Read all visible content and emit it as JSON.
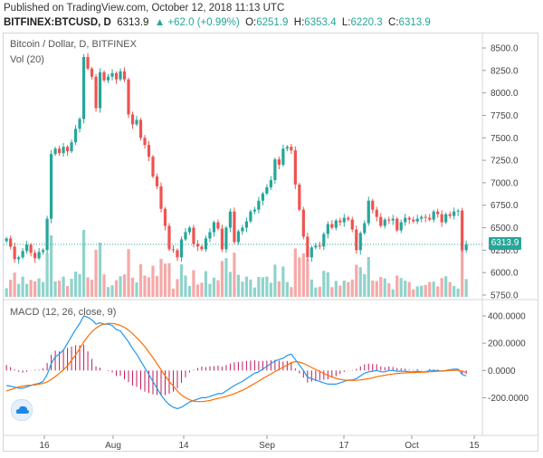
{
  "header": {
    "published": "Published on TradingView.com, October 12, 2018 11:13 UTC",
    "symbol": "BITFINEX:BTCUSD, D",
    "last": "6313.9",
    "change": "+62.0 (+0.99%)",
    "o_label": "O:",
    "o_val": "6251.9",
    "h_label": "H:",
    "h_val": "6353.4",
    "l_label": "L:",
    "l_val": "6220.3",
    "c_label": "C:",
    "c_val": "6313.9"
  },
  "legend": {
    "title": "Bitcoin / Dollar, D, BITFINEX",
    "vol": "Vol (20)",
    "macd": "MACD (12, 26, close, 9)"
  },
  "price_tag": "6313.9",
  "colors": {
    "up": "#26a69a",
    "down": "#ef5350",
    "vol_up": "#8fd3cb",
    "vol_down": "#f4a9a8",
    "macd": "#2196f3",
    "signal": "#ff6d00",
    "hist": "#c2185b"
  },
  "icons": {
    "logo": "tradingview-cloud-icon"
  },
  "chart_data": [
    {
      "type": "candlestick",
      "title": "Bitcoin / Dollar, D, BITFINEX",
      "ylim": [
        5750,
        8500
      ],
      "y_ticks": [
        "8500.0",
        "8250.0",
        "8000.0",
        "7750.0",
        "7500.0",
        "7250.0",
        "7000.0",
        "6750.0",
        "6500.0",
        "6250.0",
        "6000.0",
        "5750.0"
      ],
      "x_ticks": [
        "16",
        "Aug",
        "14",
        "Sep",
        "17",
        "Oct",
        "15"
      ],
      "current_price": 6313.9,
      "close": [
        6380,
        6290,
        6150,
        6170,
        6240,
        6310,
        6220,
        6160,
        6230,
        6250,
        6600,
        7320,
        7380,
        7330,
        7400,
        7350,
        7450,
        7600,
        7710,
        8400,
        8270,
        8180,
        7830,
        8230,
        8140,
        8180,
        8220,
        8150,
        8240,
        8150,
        7760,
        7650,
        7700,
        7500,
        7420,
        7290,
        7070,
        6960,
        6710,
        6520,
        6260,
        6250,
        6170,
        6370,
        6450,
        6500,
        6320,
        6290,
        6260,
        6380,
        6450,
        6560,
        6490,
        6260,
        6500,
        6680,
        6340,
        6460,
        6500,
        6570,
        6680,
        6700,
        6800,
        6880,
        6950,
        7030,
        7260,
        7200,
        7380,
        7400,
        7360,
        6980,
        6700,
        6400,
        6170,
        6280,
        6300,
        6290,
        6430,
        6540,
        6500,
        6580,
        6560,
        6610,
        6590,
        6480,
        6250,
        6440,
        6550,
        6800,
        6700,
        6620,
        6520,
        6590,
        6580,
        6600,
        6470,
        6560,
        6610,
        6590,
        6570,
        6600,
        6620,
        6610,
        6590,
        6680,
        6650,
        6560,
        6650,
        6630,
        6680,
        6690,
        6250,
        6313.9
      ],
      "volume_note": "volume bars shown beneath price; values not printed"
    },
    {
      "type": "line",
      "title": "MACD (12, 26, close, 9)",
      "ylim": [
        -290,
        440
      ],
      "y_ticks": [
        "400.0000",
        "200.0000",
        "0.0000",
        "-200.0000"
      ],
      "series": [
        {
          "values": [
            -110,
            -115,
            -122,
            -130,
            -130,
            -120,
            -110,
            -100,
            -95,
            -80,
            -30,
            50,
            100,
            120,
            150,
            200,
            250,
            300,
            345,
            400,
            390,
            370,
            340,
            350,
            340,
            340,
            330,
            300,
            290,
            250,
            210,
            160,
            120,
            70,
            20,
            -30,
            -80,
            -130,
            -180,
            -220,
            -250,
            -270,
            -280,
            -270,
            -250,
            -230,
            -220,
            -210,
            -200,
            -200,
            -190,
            -180,
            -170,
            -170,
            -150,
            -130,
            -110,
            -95,
            -80,
            -60,
            -40,
            -20,
            -10,
            10,
            30,
            50,
            70,
            80,
            90,
            110,
            120,
            80,
            40,
            0,
            -50,
            -60,
            -70,
            -80,
            -90,
            -100,
            -100,
            -100,
            -90,
            -80,
            -70,
            -70,
            -60,
            -40,
            -20,
            -10,
            -5,
            0,
            -10,
            -10,
            0,
            0,
            -5,
            -5,
            -5,
            -10,
            -10,
            -5,
            -10,
            -10,
            0,
            0,
            0,
            -5,
            0,
            5,
            10,
            10,
            -30,
            -40
          ]
        },
        {
          "values": [
            -150,
            -140,
            -130,
            -120,
            -115,
            -110,
            -108,
            -105,
            -100,
            -95,
            -85,
            -65,
            -45,
            -20,
            5,
            35,
            75,
            115,
            160,
            210,
            250,
            285,
            310,
            330,
            340,
            345,
            345,
            340,
            330,
            315,
            295,
            270,
            240,
            210,
            175,
            135,
            95,
            50,
            5,
            -40,
            -80,
            -115,
            -150,
            -180,
            -200,
            -215,
            -225,
            -228,
            -228,
            -225,
            -220,
            -212,
            -205,
            -198,
            -190,
            -180,
            -170,
            -158,
            -145,
            -130,
            -112,
            -95,
            -78,
            -60,
            -42,
            -25,
            -8,
            8,
            25,
            40,
            58,
            65,
            62,
            52,
            38,
            22,
            8,
            -8,
            -22,
            -35,
            -48,
            -58,
            -65,
            -70,
            -72,
            -73,
            -72,
            -70,
            -65,
            -60,
            -53,
            -46,
            -40,
            -35,
            -30,
            -26,
            -22,
            -20,
            -18,
            -16,
            -15,
            -14,
            -13,
            -12,
            -10,
            -8,
            -6,
            -4,
            -2,
            0,
            1,
            2,
            -5,
            -15
          ]
        }
      ]
    }
  ]
}
